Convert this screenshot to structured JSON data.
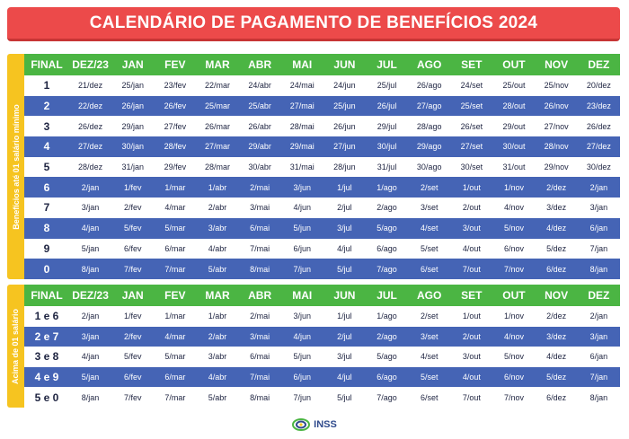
{
  "title": "CALENDÁRIO DE PAGAMENTO DE BENEFÍCIOS 2024",
  "headers": [
    "FINAL",
    "DEZ/23",
    "JAN",
    "FEV",
    "MAR",
    "ABR",
    "MAI",
    "JUN",
    "JUL",
    "AGO",
    "SET",
    "OUT",
    "NOV",
    "DEZ"
  ],
  "section1": {
    "side_label": "Benefícios até 01 salário mínimo",
    "rows": [
      [
        "1",
        "21/dez",
        "25/jan",
        "23/fev",
        "22/mar",
        "24/abr",
        "24/mai",
        "24/jun",
        "25/jul",
        "26/ago",
        "24/set",
        "25/out",
        "25/nov",
        "20/dez"
      ],
      [
        "2",
        "22/dez",
        "26/jan",
        "26/fev",
        "25/mar",
        "25/abr",
        "27/mai",
        "25/jun",
        "26/jul",
        "27/ago",
        "25/set",
        "28/out",
        "26/nov",
        "23/dez"
      ],
      [
        "3",
        "26/dez",
        "29/jan",
        "27/fev",
        "26/mar",
        "26/abr",
        "28/mai",
        "26/jun",
        "29/jul",
        "28/ago",
        "26/set",
        "29/out",
        "27/nov",
        "26/dez"
      ],
      [
        "4",
        "27/dez",
        "30/jan",
        "28/fev",
        "27/mar",
        "29/abr",
        "29/mai",
        "27/jun",
        "30/jul",
        "29/ago",
        "27/set",
        "30/out",
        "28/nov",
        "27/dez"
      ],
      [
        "5",
        "28/dez",
        "31/jan",
        "29/fev",
        "28/mar",
        "30/abr",
        "31/mai",
        "28/jun",
        "31/jul",
        "30/ago",
        "30/set",
        "31/out",
        "29/nov",
        "30/dez"
      ],
      [
        "6",
        "2/jan",
        "1/fev",
        "1/mar",
        "1/abr",
        "2/mai",
        "3/jun",
        "1/jul",
        "1/ago",
        "2/set",
        "1/out",
        "1/nov",
        "2/dez",
        "2/jan"
      ],
      [
        "7",
        "3/jan",
        "2/fev",
        "4/mar",
        "2/abr",
        "3/mai",
        "4/jun",
        "2/jul",
        "2/ago",
        "3/set",
        "2/out",
        "4/nov",
        "3/dez",
        "3/jan"
      ],
      [
        "8",
        "4/jan",
        "5/fev",
        "5/mar",
        "3/abr",
        "6/mai",
        "5/jun",
        "3/jul",
        "5/ago",
        "4/set",
        "3/out",
        "5/nov",
        "4/dez",
        "6/jan"
      ],
      [
        "9",
        "5/jan",
        "6/fev",
        "6/mar",
        "4/abr",
        "7/mai",
        "6/jun",
        "4/jul",
        "6/ago",
        "5/set",
        "4/out",
        "6/nov",
        "5/dez",
        "7/jan"
      ],
      [
        "0",
        "8/jan",
        "7/fev",
        "7/mar",
        "5/abr",
        "8/mai",
        "7/jun",
        "5/jul",
        "7/ago",
        "6/set",
        "7/out",
        "7/nov",
        "6/dez",
        "8/jan"
      ]
    ]
  },
  "section2": {
    "side_label": "Acima de 01 salário",
    "rows": [
      [
        "1 e 6",
        "2/jan",
        "1/fev",
        "1/mar",
        "1/abr",
        "2/mai",
        "3/jun",
        "1/jul",
        "1/ago",
        "2/set",
        "1/out",
        "1/nov",
        "2/dez",
        "2/jan"
      ],
      [
        "2 e 7",
        "3/jan",
        "2/fev",
        "4/mar",
        "2/abr",
        "3/mai",
        "4/jun",
        "2/jul",
        "2/ago",
        "3/set",
        "2/out",
        "4/nov",
        "3/dez",
        "3/jan"
      ],
      [
        "3 e 8",
        "4/jan",
        "5/fev",
        "5/mar",
        "3/abr",
        "6/mai",
        "5/jun",
        "3/jul",
        "5/ago",
        "4/set",
        "3/out",
        "5/nov",
        "4/dez",
        "6/jan"
      ],
      [
        "4 e 9",
        "5/jan",
        "6/fev",
        "6/mar",
        "4/abr",
        "7/mai",
        "6/jun",
        "4/jul",
        "6/ago",
        "5/set",
        "4/out",
        "6/nov",
        "5/dez",
        "7/jan"
      ],
      [
        "5 e 0",
        "8/jan",
        "7/fev",
        "7/mar",
        "5/abr",
        "8/mai",
        "7/jun",
        "5/jul",
        "7/ago",
        "6/set",
        "7/out",
        "7/nov",
        "6/dez",
        "8/jan"
      ]
    ]
  },
  "footer": {
    "logo_text": "INSS"
  },
  "colors": {
    "title_red": "#ec4a4a",
    "header_green": "#4bb543",
    "row_blue": "#4564b5",
    "side_yellow": "#f6c420"
  }
}
